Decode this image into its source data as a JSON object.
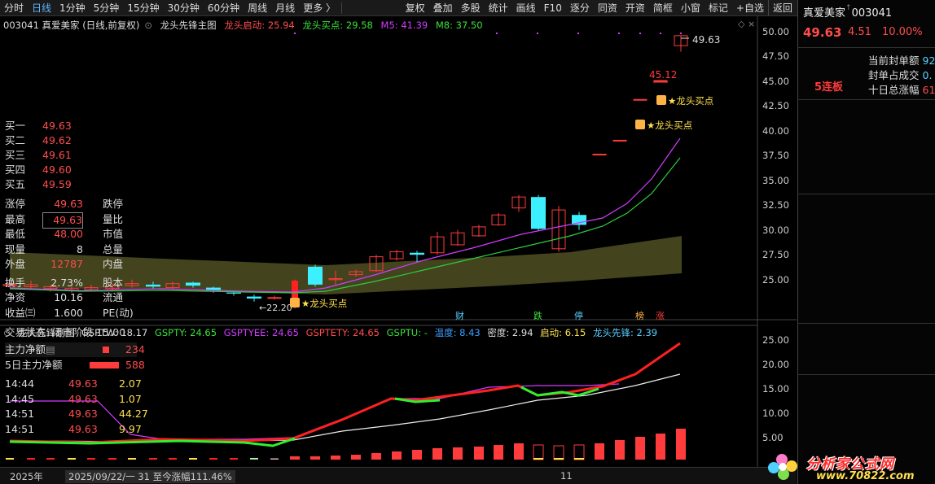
{
  "toolbar": {
    "periods": [
      "分时",
      "日线",
      "1分钟",
      "5分钟",
      "15分钟",
      "30分钟",
      "60分钟",
      "周线",
      "月线",
      "更多 〉"
    ],
    "active_period": "日线",
    "tools": [
      "复权",
      "叠加",
      "多股",
      "统计",
      "画线",
      "F10",
      "逐分",
      "同资",
      "开资",
      "简框",
      "小窗",
      "标记",
      "+自选",
      "返回"
    ]
  },
  "main_title": {
    "code_name": "003041 真爱美家 (日线,前复权)",
    "indicator": "龙头先锋主图",
    "qidong": "龙头启动: 25.94",
    "maidian": "龙头买点: 29.58",
    "m5": "M5: 41.39",
    "m8": "M8: 37.50"
  },
  "sub_title": {
    "name": "龙头先锋副图",
    "gsptw": "GSPTW: 18.17",
    "gspty": "GSPTY: 24.65",
    "gsptyee": "GSPTYEE: 24.65",
    "gsptety": "GSPTETY: 24.65",
    "gsptu": "GSPTU: -",
    "gsptu_tail": "温度: 8.43",
    "midu": "密度: 2.94",
    "qidong": "启动: 6.15",
    "xianfeng": "龙头先锋: 2.39"
  },
  "axis": {
    "main": [
      "50.00",
      "47.50",
      "45.00",
      "42.50",
      "40.00",
      "37.50",
      "35.00",
      "32.50",
      "30.00",
      "27.50",
      "25.00"
    ],
    "sub": [
      "25.00",
      "20.00",
      "15.00",
      "10.00",
      "5.00"
    ]
  },
  "annotations": {
    "high_price": "49.63",
    "peak_label": "45.12",
    "low_label": "22.20",
    "buy1": "★龙头买点",
    "buy2": "★龙头买点",
    "buy3": "★龙头买点",
    "streak": "5连板",
    "event_tags": [
      "财",
      "跌",
      "停",
      "榜",
      "涨"
    ]
  },
  "quote": {
    "name": "真爱美家",
    "code": "003041",
    "price": "49.63",
    "change": "4.51",
    "pct": "10.00%",
    "info_labels": [
      "当前封单额",
      "封单占成交",
      "十日总涨幅"
    ],
    "info_values": [
      "92",
      "0.",
      "61"
    ],
    "bids": [
      {
        "label": "买一",
        "price": "49.63"
      },
      {
        "label": "买二",
        "price": "49.62"
      },
      {
        "label": "买三",
        "price": "49.61"
      },
      {
        "label": "买四",
        "price": "49.60"
      },
      {
        "label": "买五",
        "price": "49.59"
      }
    ],
    "stats_left": [
      {
        "label": "涨停",
        "value": "49.63"
      },
      {
        "label": "最高",
        "value": "49.63"
      },
      {
        "label": "最低",
        "value": "48.00"
      },
      {
        "label": "现量",
        "value": "8"
      },
      {
        "label": "外盘",
        "value": "12787"
      },
      {
        "label": "换手",
        "value": "2.73%"
      },
      {
        "label": "净资",
        "value": "10.16"
      },
      {
        "label": "收益㈢",
        "value": "1.600"
      }
    ],
    "stats_right": [
      "跌停",
      "量比",
      "市值",
      "总量",
      "内盘",
      "股本",
      "流通",
      "PE(动)"
    ],
    "status_label": "交易状态: 闭市阶段 15:00",
    "net_label": "主力净额",
    "net_value": "234",
    "net5_label": "5日主力净额",
    "net5_value": "588",
    "ticks": [
      {
        "time": "14:44",
        "price": "49.63",
        "vol": "2.07"
      },
      {
        "time": "14:45",
        "price": "49.63",
        "vol": "1.07"
      },
      {
        "time": "14:51",
        "price": "49.63",
        "vol": "44.27"
      },
      {
        "time": "14:51",
        "price": "49.63",
        "vol": "9.97"
      }
    ]
  },
  "footer": {
    "year": "2025年",
    "range": "2025/09/22/一 31 至今涨幅111.46%",
    "date_mark": "11"
  },
  "watermark": {
    "site": "分析家公式网",
    "url": "www.70822.com"
  },
  "colors": {
    "up": "#ff3b3b",
    "down": "#3df0ff",
    "ma5": "#d23cff",
    "ma8": "#2ecc40",
    "band": "#4a4a20"
  }
}
